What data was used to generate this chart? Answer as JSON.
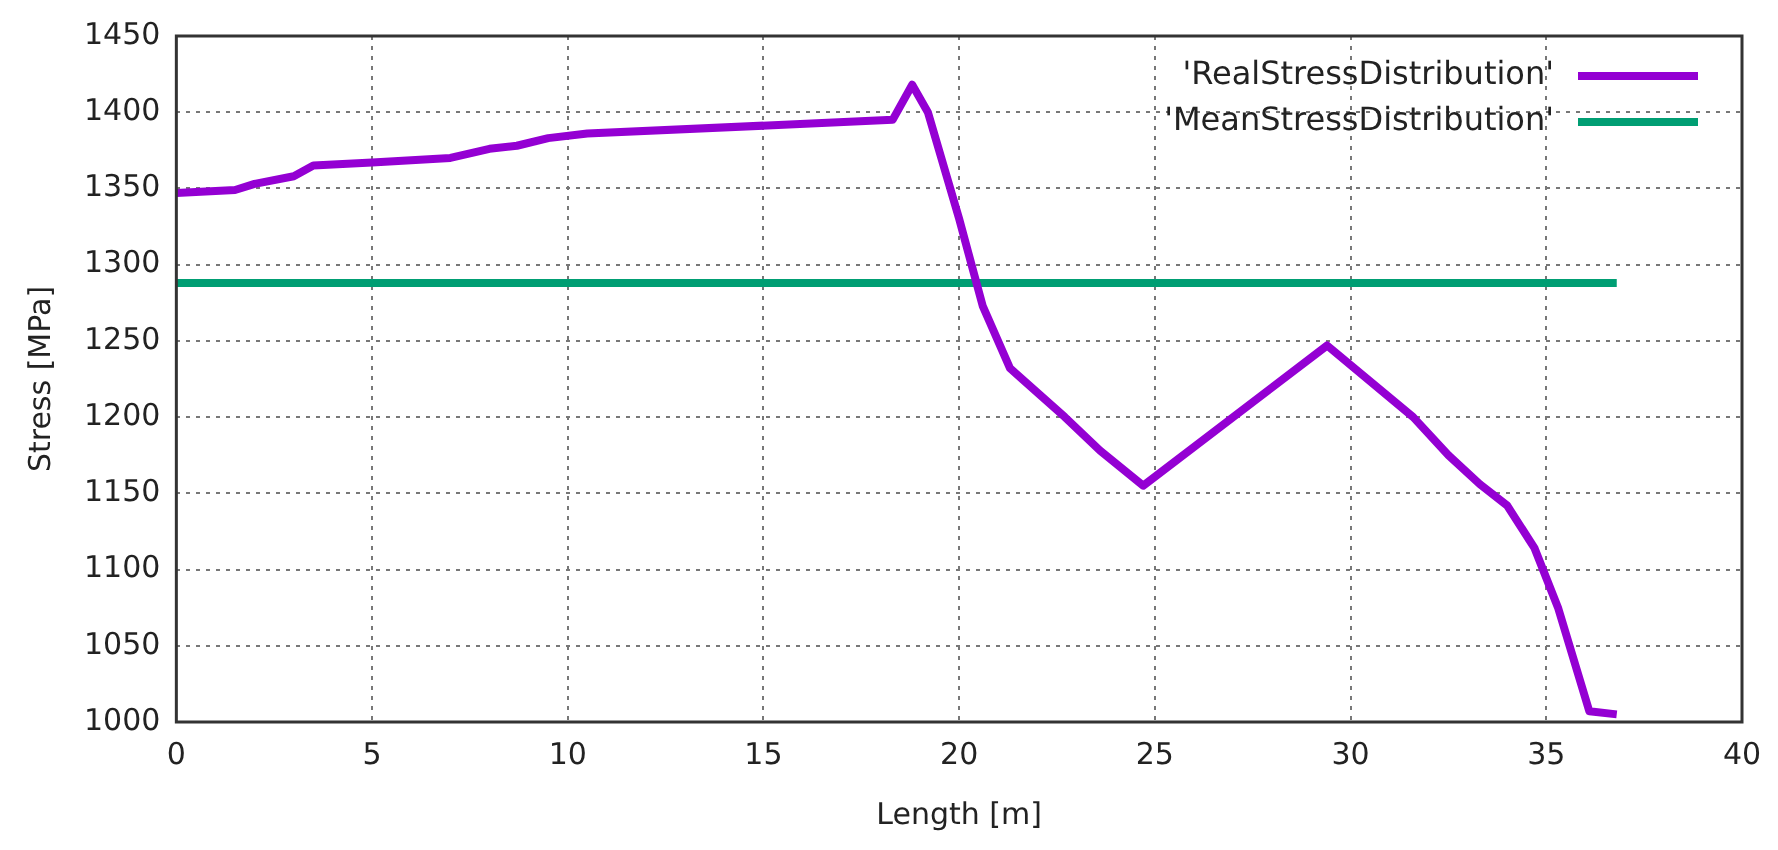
{
  "chart_data": {
    "type": "line",
    "xlabel": "Length [m]",
    "ylabel": "Stress [MPa]",
    "series": [
      {
        "name": "'RealStressDistribution'",
        "color": "#9400d3",
        "x": [
          0,
          1.5,
          2,
          3,
          3.5,
          5,
          7,
          8,
          8.7,
          9.5,
          10.5,
          18.3,
          18.8,
          19.2,
          20,
          20.6,
          21.3,
          22.7,
          23.6,
          24.7,
          29.4,
          31.6,
          32.5,
          33.3,
          34,
          34.7,
          35.3,
          36.1,
          36.8
        ],
        "values": [
          1347,
          1349,
          1353,
          1358,
          1365,
          1367,
          1370,
          1376,
          1378,
          1383,
          1386,
          1395,
          1418,
          1400,
          1330,
          1273,
          1232,
          1200,
          1178,
          1155,
          1247,
          1200,
          1175,
          1156,
          1142,
          1114,
          1075,
          1007,
          1005
        ]
      },
      {
        "name": "'MeanStressDistribution'",
        "color": "#009e73",
        "x": [
          0,
          36.8
        ],
        "values": [
          1288,
          1288
        ]
      }
    ],
    "xlim": [
      0,
      40
    ],
    "xticks": [
      0,
      5,
      10,
      15,
      20,
      25,
      30,
      35,
      40
    ],
    "ylim": [
      1000,
      1450
    ],
    "yticks": [
      1000,
      1050,
      1100,
      1150,
      1200,
      1250,
      1300,
      1350,
      1400,
      1450
    ],
    "grid": true,
    "legend": "top right",
    "marker": "none",
    "line_style": "solid"
  }
}
